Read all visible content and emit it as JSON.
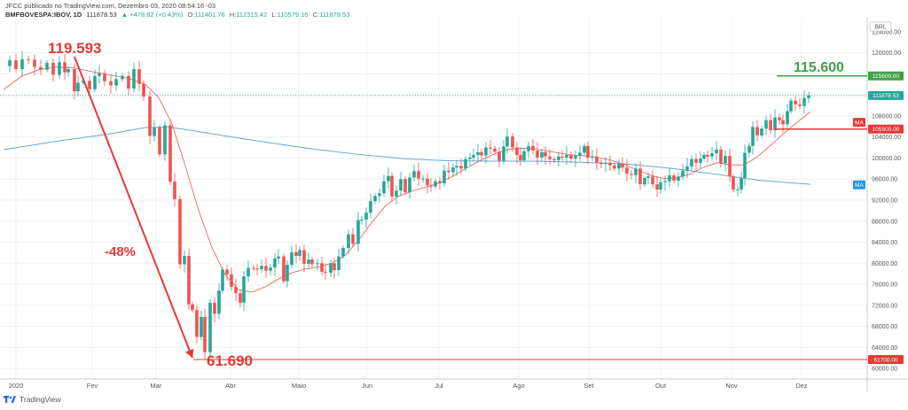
{
  "header": {
    "line1": "JFCC publicado no TradingView.com, Dezembro 03, 2020 08:54:16 -03",
    "symbol": "BMFBOVESPA:IBOV, 1D",
    "last": "111878.53",
    "change": "▲ +478.62 (+0.43%)",
    "o_label": "O:",
    "o": "111401.76",
    "h_label": "H:",
    "h": "112315.42",
    "l_label": "L:",
    "l": "110579.16",
    "c_label": "C:",
    "c": "111878.53"
  },
  "footer": {
    "brand": "TradingView"
  },
  "colors": {
    "up": "#26a69a",
    "down": "#ef5350",
    "ma_fast": "#ef5350",
    "ma_slow": "#64a8d8",
    "annot": "#e53935",
    "target": "#43a047",
    "grid": "#eef0f3"
  },
  "chart_data": {
    "type": "candlestick",
    "currency": "BRL",
    "y_axis_label": "124000.00",
    "ylim": [
      58000,
      126000
    ],
    "yticks": [
      60000,
      64000,
      68000,
      72000,
      76000,
      80000,
      84000,
      88000,
      92000,
      96000,
      100000,
      104000,
      108000,
      112000,
      116000,
      120000
    ],
    "x_labels": [
      "2020",
      "Fev",
      "Mar",
      "Abr",
      "Maio",
      "Jun",
      "Jul",
      "Ago",
      "Set",
      "Out",
      "Nov",
      "Dez"
    ],
    "series_points": {
      "ohlc_close": [
        [
          0,
          117500
        ],
        [
          7,
          118600
        ],
        [
          14,
          116900
        ],
        [
          21,
          118800
        ],
        [
          28,
          118700
        ],
        [
          35,
          117300
        ],
        [
          42,
          116800
        ],
        [
          49,
          118100
        ],
        [
          56,
          115800
        ],
        [
          63,
          118200
        ],
        [
          69,
          116300
        ],
        [
          73,
          116900
        ],
        [
          80,
          112700
        ],
        [
          84,
          114300
        ],
        [
          90,
          114700
        ],
        [
          97,
          113100
        ],
        [
          103,
          115600
        ],
        [
          108,
          116100
        ],
        [
          114,
          114600
        ],
        [
          121,
          113800
        ],
        [
          127,
          115000
        ],
        [
          134,
          115600
        ],
        [
          141,
          113200
        ],
        [
          147,
          116900
        ],
        [
          153,
          114100
        ],
        [
          158,
          111700
        ],
        [
          165,
          104200
        ],
        [
          170,
          105800
        ],
        [
          176,
          100700
        ],
        [
          182,
          106200
        ],
        [
          188,
          95500
        ],
        [
          193,
          92200
        ],
        [
          199,
          79800
        ],
        [
          204,
          81400
        ],
        [
          209,
          72200
        ],
        [
          213,
          71100
        ],
        [
          218,
          66000
        ],
        [
          223,
          69800
        ],
        [
          227,
          63100
        ],
        [
          233,
          72500
        ],
        [
          238,
          70400
        ],
        [
          243,
          74800
        ],
        [
          247,
          78800
        ],
        [
          252,
          77900
        ],
        [
          257,
          75500
        ],
        [
          262,
          74300
        ],
        [
          267,
          72500
        ],
        [
          271,
          77500
        ],
        [
          276,
          79100
        ],
        [
          282,
          79000
        ],
        [
          286,
          78900
        ],
        [
          291,
          79500
        ],
        [
          296,
          78600
        ],
        [
          301,
          79200
        ],
        [
          306,
          80900
        ],
        [
          310,
          81300
        ],
        [
          316,
          76600
        ],
        [
          320,
          79700
        ],
        [
          325,
          82100
        ],
        [
          330,
          81400
        ],
        [
          334,
          82500
        ],
        [
          339,
          79900
        ],
        [
          344,
          80700
        ],
        [
          348,
          79800
        ],
        [
          354,
          80000
        ],
        [
          359,
          78400
        ],
        [
          363,
          78200
        ],
        [
          369,
          80000
        ],
        [
          373,
          78700
        ],
        [
          378,
          81300
        ],
        [
          383,
          82900
        ],
        [
          389,
          85500
        ],
        [
          394,
          83700
        ],
        [
          400,
          88200
        ],
        [
          404,
          88300
        ],
        [
          409,
          89600
        ],
        [
          414,
          91800
        ],
        [
          419,
          92800
        ],
        [
          424,
          93300
        ],
        [
          429,
          95600
        ],
        [
          434,
          96600
        ],
        [
          438,
          92700
        ],
        [
          443,
          93800
        ],
        [
          448,
          96000
        ],
        [
          453,
          93500
        ],
        [
          458,
          96300
        ],
        [
          463,
          97500
        ],
        [
          468,
          96100
        ],
        [
          473,
          96100
        ],
        [
          478,
          94800
        ],
        [
          482,
          94600
        ],
        [
          487,
          95600
        ],
        [
          492,
          95200
        ],
        [
          497,
          97600
        ],
        [
          502,
          97300
        ],
        [
          507,
          98200
        ],
        [
          511,
          98500
        ],
        [
          516,
          98000
        ],
        [
          521,
          99800
        ],
        [
          526,
          100100
        ],
        [
          530,
          100600
        ],
        [
          535,
          101100
        ],
        [
          539,
          100500
        ],
        [
          544,
          102000
        ],
        [
          549,
          101800
        ],
        [
          554,
          101200
        ],
        [
          559,
          99500
        ],
        [
          564,
          102200
        ],
        [
          568,
          104100
        ],
        [
          574,
          102000
        ],
        [
          579,
          100600
        ],
        [
          583,
          99600
        ],
        [
          587,
          101300
        ],
        [
          592,
          102300
        ],
        [
          597,
          101400
        ],
        [
          602,
          100100
        ],
        [
          607,
          101100
        ],
        [
          611,
          100300
        ],
        [
          616,
          99800
        ],
        [
          621,
          99600
        ],
        [
          626,
          100300
        ],
        [
          630,
          100100
        ],
        [
          635,
          100600
        ],
        [
          640,
          99900
        ],
        [
          645,
          100400
        ],
        [
          650,
          101000
        ],
        [
          655,
          102300
        ],
        [
          659,
          100100
        ],
        [
          664,
          100300
        ],
        [
          669,
          99100
        ],
        [
          674,
          98900
        ],
        [
          679,
          99100
        ],
        [
          684,
          98600
        ],
        [
          689,
          98000
        ],
        [
          694,
          98900
        ],
        [
          698,
          98200
        ],
        [
          703,
          97000
        ],
        [
          708,
          96800
        ],
        [
          713,
          98000
        ],
        [
          718,
          95000
        ],
        [
          723,
          96200
        ],
        [
          727,
          96500
        ],
        [
          732,
          95000
        ],
        [
          737,
          94000
        ],
        [
          741,
          95400
        ],
        [
          746,
          95600
        ],
        [
          751,
          96700
        ],
        [
          756,
          95700
        ],
        [
          761,
          96500
        ],
        [
          766,
          97600
        ],
        [
          771,
          98400
        ],
        [
          776,
          99800
        ],
        [
          781,
          99100
        ],
        [
          786,
          99900
        ],
        [
          790,
          100600
        ],
        [
          794,
          100300
        ],
        [
          799,
          100900
        ],
        [
          804,
          101600
        ],
        [
          809,
          99000
        ],
        [
          814,
          100400
        ],
        [
          819,
          96500
        ],
        [
          823,
          94000
        ],
        [
          828,
          94000
        ],
        [
          832,
          96200
        ],
        [
          836,
          101000
        ],
        [
          841,
          102300
        ],
        [
          845,
          105900
        ],
        [
          850,
          104300
        ],
        [
          855,
          105600
        ],
        [
          860,
          107200
        ],
        [
          865,
          105300
        ],
        [
          870,
          107700
        ],
        [
          875,
          107200
        ],
        [
          879,
          106400
        ],
        [
          884,
          108900
        ],
        [
          888,
          110900
        ],
        [
          893,
          110200
        ],
        [
          898,
          109900
        ],
        [
          903,
          111400
        ],
        [
          908,
          111900
        ]
      ],
      "ma_fast_red": [
        [
          0,
          113000
        ],
        [
          20,
          115500
        ],
        [
          40,
          116800
        ],
        [
          60,
          117300
        ],
        [
          80,
          117100
        ],
        [
          100,
          116400
        ],
        [
          120,
          115800
        ],
        [
          140,
          115200
        ],
        [
          160,
          114000
        ],
        [
          175,
          111500
        ],
        [
          190,
          106500
        ],
        [
          205,
          98500
        ],
        [
          220,
          90000
        ],
        [
          235,
          83000
        ],
        [
          250,
          77800
        ],
        [
          265,
          75000
        ],
        [
          280,
          74500
        ],
        [
          295,
          75500
        ],
        [
          310,
          77000
        ],
        [
          325,
          78200
        ],
        [
          340,
          78900
        ],
        [
          355,
          79300
        ],
        [
          370,
          80000
        ],
        [
          385,
          81500
        ],
        [
          400,
          84300
        ],
        [
          415,
          87700
        ],
        [
          430,
          90800
        ],
        [
          445,
          92700
        ],
        [
          460,
          93700
        ],
        [
          475,
          94400
        ],
        [
          490,
          95200
        ],
        [
          505,
          96400
        ],
        [
          520,
          97900
        ],
        [
          535,
          99300
        ],
        [
          550,
          100500
        ],
        [
          565,
          101500
        ],
        [
          580,
          101900
        ],
        [
          595,
          101800
        ],
        [
          610,
          101400
        ],
        [
          625,
          101000
        ],
        [
          640,
          100600
        ],
        [
          655,
          100400
        ],
        [
          670,
          100100
        ],
        [
          685,
          99600
        ],
        [
          700,
          98800
        ],
        [
          715,
          97700
        ],
        [
          730,
          96700
        ],
        [
          745,
          96100
        ],
        [
          760,
          96200
        ],
        [
          775,
          97000
        ],
        [
          790,
          98300
        ],
        [
          805,
          99100
        ],
        [
          820,
          98700
        ],
        [
          835,
          98700
        ],
        [
          850,
          100200
        ],
        [
          865,
          102400
        ],
        [
          880,
          104700
        ],
        [
          895,
          106800
        ],
        [
          910,
          108800
        ]
      ],
      "ma_slow_blue": [
        [
          0,
          101600
        ],
        [
          60,
          103200
        ],
        [
          120,
          104600
        ],
        [
          160,
          105800
        ],
        [
          185,
          105900
        ],
        [
          210,
          105300
        ],
        [
          250,
          104200
        ],
        [
          300,
          102900
        ],
        [
          350,
          101700
        ],
        [
          400,
          100700
        ],
        [
          450,
          99900
        ],
        [
          500,
          99500
        ],
        [
          550,
          99400
        ],
        [
          600,
          99400
        ],
        [
          650,
          99200
        ],
        [
          700,
          98900
        ],
        [
          750,
          98100
        ],
        [
          800,
          97000
        ],
        [
          850,
          95800
        ],
        [
          910,
          95000
        ]
      ]
    },
    "annotations": {
      "high_label": "119.593",
      "low_label": "61.690",
      "pct_label": "-48%",
      "target_label": "115.600"
    },
    "price_tags": {
      "target": "115600.00",
      "last": "111878.53",
      "ma_fast": "MA",
      "support": "105500.00",
      "ma_slow": "MA",
      "low": "61700.00"
    }
  }
}
